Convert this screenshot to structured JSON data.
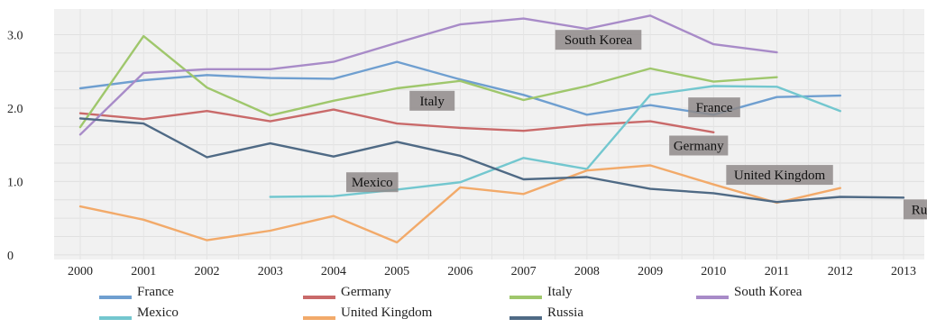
{
  "chart_data": {
    "type": "line",
    "x": [
      2000,
      2001,
      2002,
      2003,
      2004,
      2005,
      2006,
      2007,
      2008,
      2009,
      2010,
      2011,
      2012,
      2013
    ],
    "yticks": [
      {
        "value": 0,
        "label": "0"
      },
      {
        "value": 1,
        "label": "1.0"
      },
      {
        "value": 2,
        "label": "2.0"
      },
      {
        "value": 3,
        "label": "3.0"
      }
    ],
    "ylim": [
      -0.1,
      3.35
    ],
    "grid": true,
    "legend_placement": "bottom",
    "series": [
      {
        "name": "France",
        "color": "#6f9fd0",
        "values": [
          2.27,
          2.38,
          2.45,
          2.41,
          2.4,
          2.63,
          2.39,
          2.18,
          1.91,
          2.04,
          1.91,
          2.15,
          2.17,
          null
        ],
        "label_at": [
          2009.6,
          2.01
        ]
      },
      {
        "name": "Germany",
        "color": "#c96a6a",
        "values": [
          1.93,
          1.85,
          1.96,
          1.82,
          1.98,
          1.79,
          1.73,
          1.69,
          1.77,
          1.82,
          1.67,
          null,
          null,
          null
        ],
        "label_at": [
          2009.3,
          1.49
        ]
      },
      {
        "name": "Italy",
        "color": "#9fc76c",
        "values": [
          1.74,
          2.98,
          2.28,
          1.9,
          2.1,
          2.27,
          2.37,
          2.11,
          2.3,
          2.54,
          2.36,
          2.42,
          null,
          null
        ],
        "label_at": [
          2005.2,
          2.1
        ]
      },
      {
        "name": "South Korea",
        "color": "#a88bc8",
        "values": [
          1.64,
          2.48,
          2.53,
          2.53,
          2.63,
          2.89,
          3.14,
          3.22,
          3.08,
          3.26,
          2.87,
          2.76,
          null,
          null
        ],
        "label_at": [
          2007.5,
          2.93
        ]
      },
      {
        "name": "Mexico",
        "color": "#73c7cf",
        "values": [
          null,
          null,
          null,
          0.79,
          0.8,
          0.89,
          0.99,
          1.32,
          1.17,
          2.18,
          2.3,
          2.29,
          1.96,
          null
        ],
        "label_at": [
          2004.2,
          0.99
        ]
      },
      {
        "name": "United Kingdom",
        "color": "#f2aa6a",
        "values": [
          0.66,
          0.48,
          0.2,
          0.33,
          0.53,
          0.17,
          0.92,
          0.83,
          1.15,
          1.22,
          0.96,
          0.71,
          0.91,
          null
        ],
        "label_at": [
          2010.2,
          1.09
        ]
      },
      {
        "name": "Russia",
        "color": "#4f6a85",
        "values": [
          1.86,
          1.79,
          1.33,
          1.52,
          1.34,
          1.54,
          1.35,
          1.03,
          1.06,
          0.9,
          0.84,
          0.72,
          0.79,
          0.78
        ],
        "label_at": [
          2013.0,
          0.62
        ]
      }
    ]
  }
}
